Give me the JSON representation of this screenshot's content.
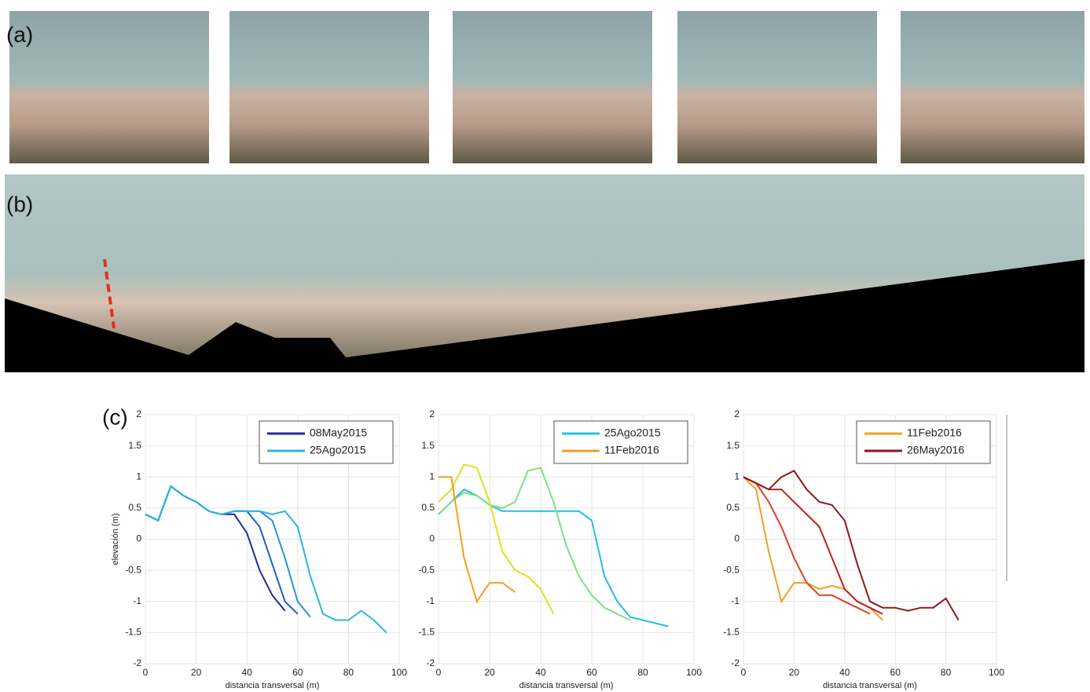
{
  "panel_labels": [
    "(a)",
    "(b)",
    "(c)"
  ],
  "chart_data": [
    {
      "type": "line",
      "xlabel": "distancia transversal (m)",
      "ylabel": "elevación (m)",
      "xlim": [
        0,
        100
      ],
      "ylim": [
        -2,
        2
      ],
      "xticks": [
        0,
        20,
        40,
        60,
        80,
        100
      ],
      "yticks": [
        -2,
        -1.5,
        -1,
        -0.5,
        0,
        0.5,
        1,
        1.5,
        2
      ],
      "grid": true,
      "legend": "upper right",
      "x": [
        0,
        5,
        10,
        15,
        20,
        25,
        30,
        35,
        40,
        45,
        50,
        55,
        60,
        65,
        70,
        75,
        80,
        85,
        90,
        95
      ],
      "series": [
        {
          "name": "08May2015",
          "color": "#1f2d9c",
          "values": [
            0.4,
            0.3,
            0.85,
            0.7,
            0.6,
            0.45,
            0.4,
            0.4,
            0.1,
            -0.5,
            -0.9,
            -1.15,
            null,
            null,
            null,
            null,
            null,
            null,
            null,
            null
          ]
        },
        {
          "color": "#2060c0",
          "values": [
            0.4,
            0.3,
            0.85,
            0.7,
            0.6,
            0.45,
            0.4,
            0.45,
            0.45,
            0.2,
            -0.4,
            -1.0,
            -1.2,
            null,
            null,
            null,
            null,
            null,
            null,
            null
          ]
        },
        {
          "color": "#2a90d8",
          "values": [
            0.4,
            0.3,
            0.85,
            0.7,
            0.6,
            0.45,
            0.4,
            0.45,
            0.45,
            0.45,
            0.3,
            -0.3,
            -1.0,
            -1.25,
            null,
            null,
            null,
            null,
            null,
            null
          ]
        },
        {
          "name": "25Ago2015",
          "color": "#2bb5e0",
          "values": [
            0.4,
            0.3,
            0.85,
            0.7,
            0.6,
            0.45,
            0.4,
            0.45,
            0.45,
            0.45,
            0.4,
            0.45,
            0.2,
            -0.6,
            -1.2,
            -1.3,
            -1.3,
            -1.15,
            -1.3,
            -1.5
          ]
        }
      ]
    },
    {
      "type": "line",
      "xlabel": "distancia transversal (m)",
      "xlim": [
        0,
        100
      ],
      "ylim": [
        -2,
        2
      ],
      "xticks": [
        0,
        20,
        40,
        60,
        80,
        100
      ],
      "yticks": [
        -2,
        -1.5,
        -1,
        -0.5,
        0,
        0.5,
        1,
        1.5,
        2
      ],
      "grid": true,
      "legend": "upper right",
      "x": [
        0,
        5,
        10,
        15,
        20,
        25,
        30,
        35,
        40,
        45,
        50,
        55,
        60,
        65,
        70,
        75,
        80,
        85,
        90
      ],
      "series": [
        {
          "name": "25Ago2015",
          "color": "#22c0e0",
          "values": [
            0.4,
            0.6,
            0.8,
            0.7,
            0.55,
            0.45,
            0.45,
            0.45,
            0.45,
            0.45,
            0.45,
            0.45,
            0.3,
            -0.6,
            -1.0,
            -1.25,
            -1.3,
            -1.35,
            -1.4
          ]
        },
        {
          "color": "#80e080",
          "values": [
            0.4,
            0.6,
            0.75,
            0.7,
            0.55,
            0.5,
            0.6,
            1.1,
            1.15,
            0.6,
            -0.1,
            -0.6,
            -0.9,
            -1.1,
            -1.2,
            -1.3,
            null,
            null,
            null
          ]
        },
        {
          "color": "#e0e020",
          "values": [
            0.6,
            0.8,
            1.2,
            1.15,
            0.6,
            -0.2,
            -0.5,
            -0.6,
            -0.8,
            -1.2,
            null,
            null,
            null,
            null,
            null,
            null,
            null,
            null,
            null
          ]
        },
        {
          "name": "11Feb2016",
          "color": "#f0a020",
          "values": [
            1.0,
            1.0,
            -0.3,
            -1.0,
            -0.7,
            -0.7,
            -0.85,
            null,
            null,
            null,
            null,
            null,
            null,
            null,
            null,
            null,
            null,
            null,
            null
          ]
        }
      ]
    },
    {
      "type": "line",
      "xlabel": "distancia transversal (m)",
      "xlim": [
        0,
        100
      ],
      "ylim": [
        -2,
        2
      ],
      "xticks": [
        0,
        20,
        40,
        60,
        80,
        100
      ],
      "yticks": [
        -2,
        -1.5,
        -1,
        -0.5,
        0,
        0.5,
        1,
        1.5,
        2
      ],
      "grid": true,
      "legend": "upper right",
      "x": [
        0,
        5,
        10,
        15,
        20,
        25,
        30,
        35,
        40,
        45,
        50,
        55,
        60,
        65,
        70,
        75,
        80,
        85
      ],
      "series": [
        {
          "name": "11Feb2016",
          "color": "#f0a020",
          "values": [
            1.0,
            0.8,
            -0.2,
            -1.0,
            -0.7,
            -0.7,
            -0.8,
            -0.75,
            -0.8,
            -1.0,
            -1.1,
            -1.3,
            null,
            null,
            null,
            null,
            null,
            null
          ]
        },
        {
          "color": "#e04020",
          "values": [
            1.0,
            0.9,
            0.6,
            0.2,
            -0.3,
            -0.7,
            -0.9,
            -0.9,
            -1.0,
            -1.1,
            -1.2,
            null,
            null,
            null,
            null,
            null,
            null,
            null
          ]
        },
        {
          "color": "#c02020",
          "values": [
            1.0,
            0.9,
            0.8,
            0.8,
            0.6,
            0.4,
            0.2,
            -0.3,
            -0.8,
            -1.0,
            -1.1,
            -1.2,
            null,
            null,
            null,
            null,
            null,
            null
          ]
        },
        {
          "name": "26May2016",
          "color": "#8b1a1a",
          "values": [
            1.0,
            0.9,
            0.8,
            1.0,
            1.1,
            0.8,
            0.6,
            0.55,
            0.3,
            -0.4,
            -1.0,
            -1.1,
            -1.1,
            -1.15,
            -1.1,
            -1.1,
            -0.95,
            -1.3
          ]
        }
      ]
    }
  ]
}
